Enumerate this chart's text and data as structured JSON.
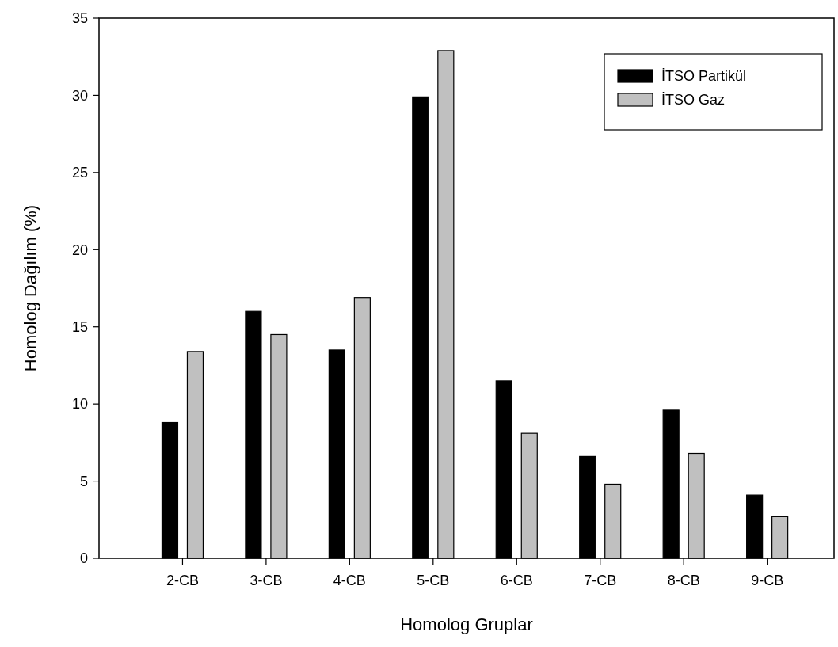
{
  "chart_data": {
    "type": "bar",
    "xlabel": "Homolog Gruplar",
    "ylabel": "Homolog Dağılım (%)",
    "categories": [
      "2-CB",
      "3-CB",
      "4-CB",
      "5-CB",
      "6-CB",
      "7-CB",
      "8-CB",
      "9-CB"
    ],
    "series": [
      {
        "name": "İTSO Partikül",
        "color": "#000000",
        "values": [
          8.8,
          16.0,
          13.5,
          29.9,
          11.5,
          6.6,
          9.6,
          4.1
        ]
      },
      {
        "name": "İTSO Gaz",
        "color": "#c0c0c0",
        "values": [
          13.4,
          14.5,
          16.9,
          32.9,
          8.1,
          4.8,
          6.8,
          2.7
        ]
      }
    ],
    "ylim": [
      0,
      35
    ],
    "yticks": [
      0,
      5,
      10,
      15,
      20,
      25,
      30,
      35
    ],
    "grid": false,
    "legend": "top right"
  }
}
